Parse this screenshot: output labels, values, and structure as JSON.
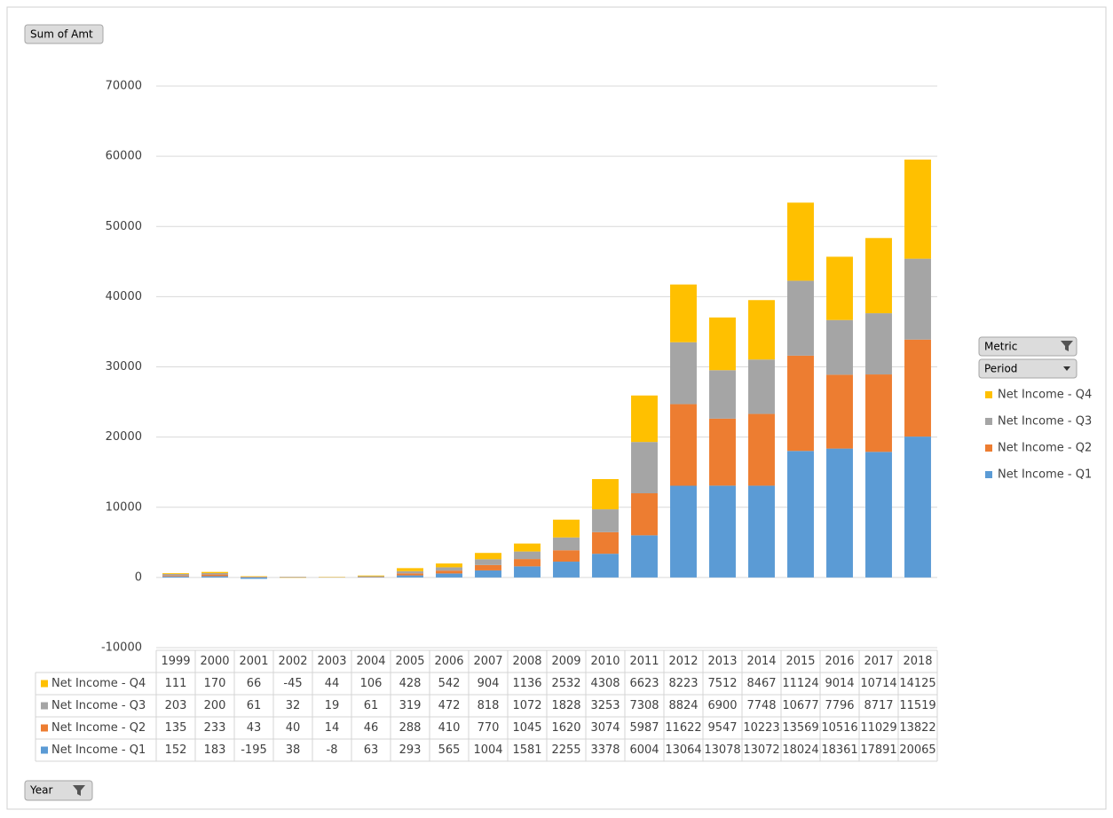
{
  "chart_data": {
    "type": "stacked_bar",
    "categories": [
      "1999",
      "2000",
      "2001",
      "2002",
      "2003",
      "2004",
      "2005",
      "2006",
      "2007",
      "2008",
      "2009",
      "2010",
      "2011",
      "2012",
      "2013",
      "2014",
      "2015",
      "2016",
      "2017",
      "2018"
    ],
    "series": [
      {
        "name": "Net Income - Q1",
        "color": "#5b9bd5",
        "values": [
          152,
          183,
          -195,
          38,
          -8,
          63,
          293,
          565,
          1004,
          1581,
          2255,
          3378,
          6004,
          13064,
          13078,
          13072,
          18024,
          18361,
          17891,
          20065
        ]
      },
      {
        "name": "Net Income - Q2",
        "color": "#ed7d31",
        "values": [
          135,
          233,
          43,
          40,
          14,
          46,
          288,
          410,
          770,
          1045,
          1620,
          3074,
          5987,
          11622,
          9547,
          10223,
          13569,
          10516,
          11029,
          13822
        ]
      },
      {
        "name": "Net Income - Q3",
        "color": "#a5a5a5",
        "values": [
          203,
          200,
          61,
          32,
          19,
          61,
          319,
          472,
          818,
          1072,
          1828,
          3253,
          7308,
          8824,
          6900,
          7748,
          10677,
          7796,
          8717,
          11519
        ]
      },
      {
        "name": "Net Income - Q4",
        "color": "#ffc000",
        "values": [
          111,
          170,
          66,
          -45,
          44,
          106,
          428,
          542,
          904,
          1136,
          2532,
          4308,
          6623,
          8223,
          7512,
          8467,
          11124,
          9014,
          10714,
          14125
        ]
      }
    ],
    "ylim": [
      -10000,
      70000
    ],
    "yticks": [
      -10000,
      0,
      10000,
      20000,
      30000,
      40000,
      50000,
      60000,
      70000
    ],
    "grid": true
  },
  "pivot_buttons": {
    "value": "Sum of Amt",
    "axis": "Year",
    "legend": [
      "Metric",
      "Period"
    ]
  }
}
